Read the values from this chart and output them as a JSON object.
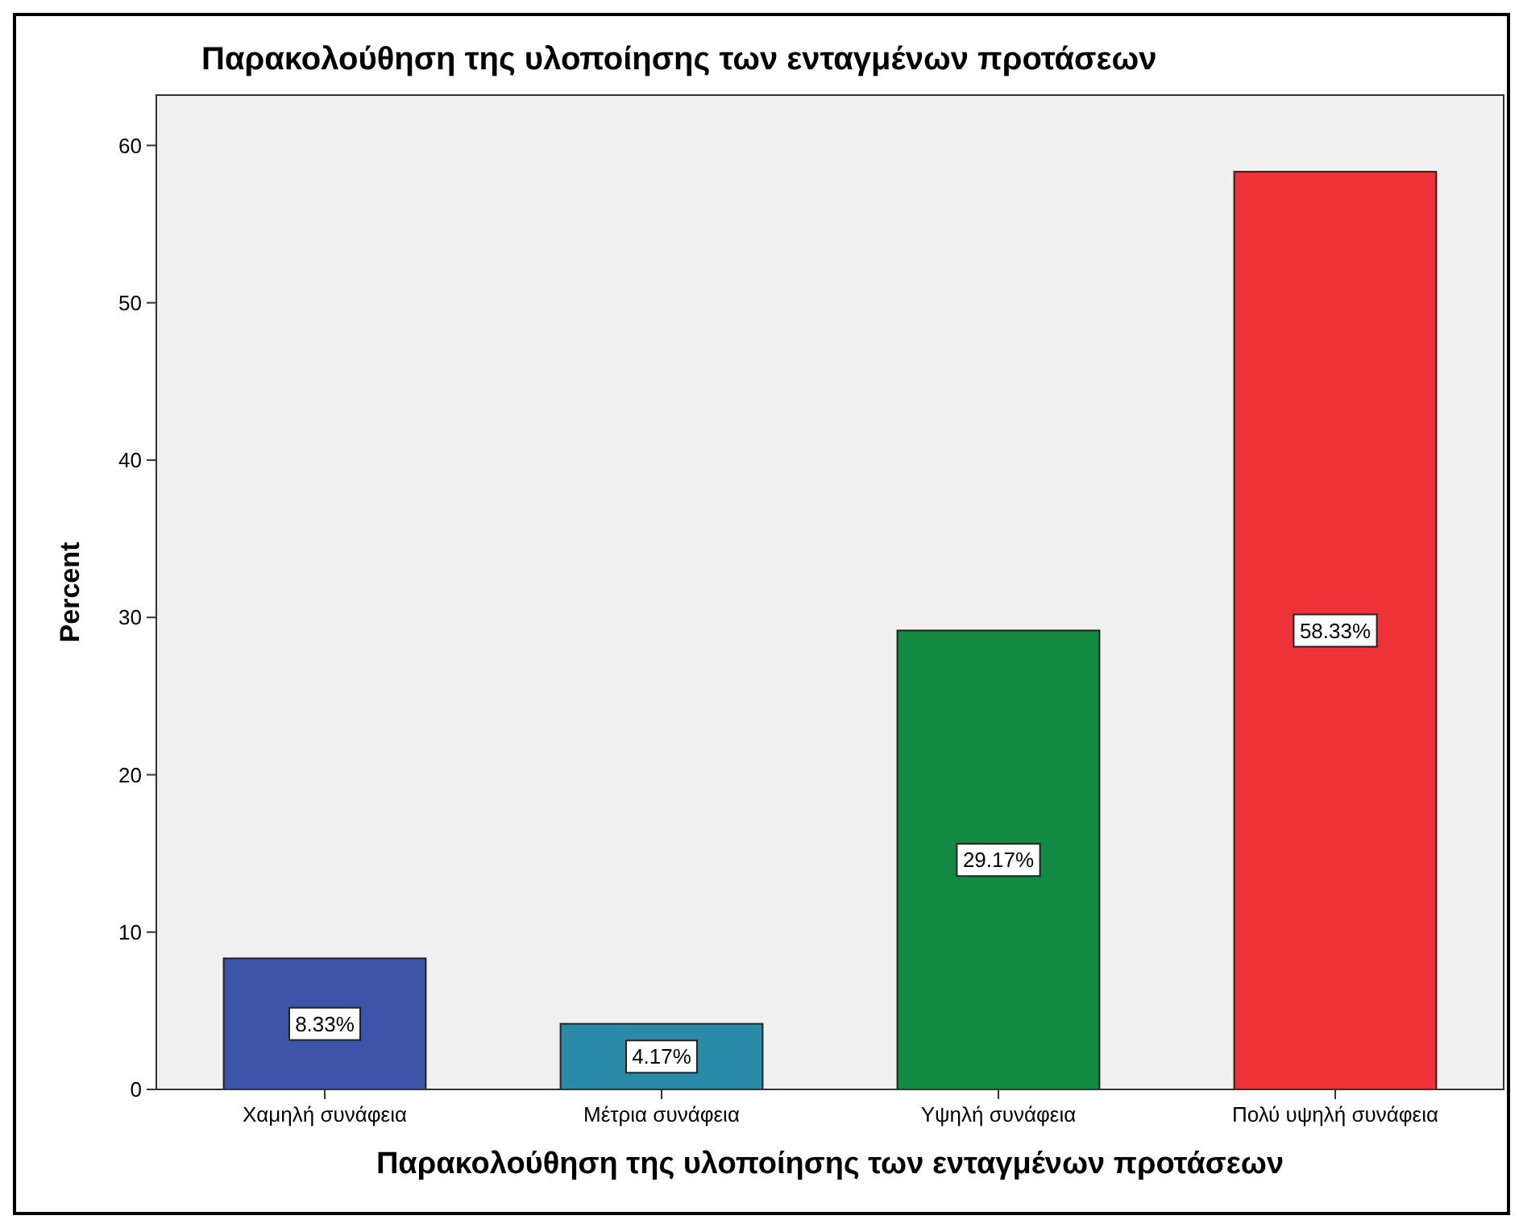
{
  "chart_data": {
    "type": "bar",
    "title": "Παρακολούθηση της υλοποίησης των ενταγμένων προτάσεων",
    "xlabel": "Παρακολούθηση της υλοποίησης των ενταγμένων προτάσεων",
    "ylabel": "Percent",
    "categories": [
      "Χαμηλή συνάφεια",
      "Μέτρια συνάφεια",
      "Υψηλή συνάφεια",
      "Πολύ υψηλή συνάφεια"
    ],
    "values": [
      8.33,
      4.17,
      29.17,
      58.33
    ],
    "colors": [
      "#3d54a8",
      "#2a8aa8",
      "#138a44",
      "#ef3237"
    ],
    "value_labels": [
      "8.33%",
      "4.17%",
      "29.17%",
      "58.33%"
    ],
    "ylim": [
      0,
      63.2
    ],
    "yticks": [
      0,
      10,
      20,
      30,
      40,
      50,
      60
    ],
    "grid": false
  }
}
